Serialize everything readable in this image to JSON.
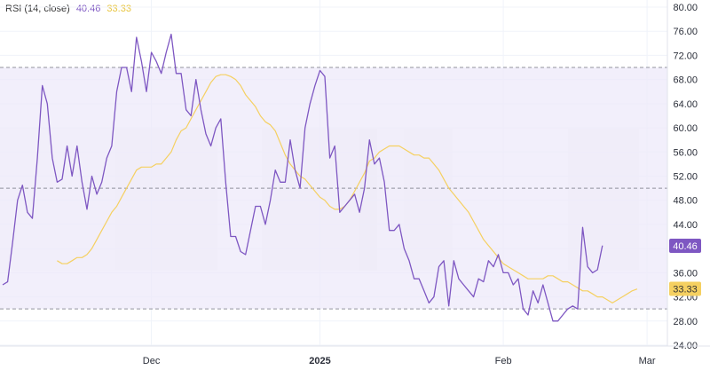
{
  "legend": {
    "label": "RSI (14, close)",
    "rsi_value": "40.46",
    "ma_value": "33.33"
  },
  "colors": {
    "rsi_line": "#7e57c2",
    "ma_line": "#f5d061",
    "band_fill": "#ede9fa",
    "badge_rsi": "#7e57c2",
    "badge_ma": "#f5d061"
  },
  "chart_data": {
    "type": "line",
    "title": "",
    "ylim": [
      24,
      80
    ],
    "yticks": [
      "80.00",
      "76.00",
      "72.00",
      "68.00",
      "64.00",
      "60.00",
      "56.00",
      "52.00",
      "48.00",
      "44.00",
      "40.00",
      "36.00",
      "32.00",
      "28.00",
      "24.00"
    ],
    "xticks": [
      {
        "label": "Dec",
        "index": 30,
        "bold": false
      },
      {
        "label": "2025",
        "index": 64,
        "bold": true
      },
      {
        "label": "Feb",
        "index": 101,
        "bold": false
      },
      {
        "label": "Mar",
        "index": 130,
        "bold": false
      }
    ],
    "levels": {
      "upper": 70,
      "middle": 50,
      "lower": 30
    },
    "series": [
      {
        "values": [
          34,
          34.5,
          41,
          48,
          50.5,
          46,
          45,
          55,
          67,
          64,
          55,
          51,
          51.5,
          57,
          52,
          57,
          51,
          46.5,
          52,
          49,
          51,
          55,
          57,
          66,
          70,
          70,
          66,
          75,
          71,
          66,
          72.5,
          71,
          69,
          72.5,
          75.5,
          69,
          69,
          63,
          62,
          68,
          63,
          59,
          57,
          60,
          61.5,
          51,
          42,
          42,
          39.5,
          39,
          43,
          47,
          47,
          44,
          48,
          53,
          51,
          51,
          58,
          53,
          50,
          60,
          64,
          67,
          69.5,
          68.5,
          55,
          57,
          46,
          47,
          48,
          49,
          46,
          50,
          58,
          54,
          55,
          51,
          43,
          43,
          44,
          40,
          38,
          35,
          35,
          33,
          31,
          32,
          37,
          38,
          30.5,
          38,
          35,
          34,
          33,
          32,
          35,
          34.5,
          38,
          37,
          39,
          36,
          36,
          34,
          35,
          30,
          29,
          33,
          31,
          34,
          31,
          28,
          28,
          29,
          30,
          30.5,
          30,
          43.5,
          37,
          36,
          36.5,
          40.5
        ],
        "x_start": 0
      },
      {
        "values": [
          38,
          37.5,
          37.5,
          38,
          38.5,
          38.5,
          39,
          40,
          41.5,
          43,
          44.5,
          46,
          47,
          48.5,
          50,
          51.5,
          53,
          53.5,
          53.5,
          53.5,
          54,
          54,
          55,
          56,
          58,
          59.5,
          60,
          61.5,
          63,
          64.5,
          66,
          67.5,
          68.5,
          68.8,
          68.8,
          68.5,
          68,
          67,
          65.5,
          64.5,
          63.5,
          62,
          61,
          60.5,
          59.5,
          57.5,
          55.5,
          54,
          53,
          52,
          51.5,
          50.5,
          49.5,
          48.5,
          48,
          47,
          46.5,
          46.5,
          47,
          48,
          49.5,
          51,
          52.5,
          54.5,
          55,
          56,
          56.5,
          57,
          57,
          57,
          56.5,
          56,
          55.5,
          55.5,
          55,
          55,
          54,
          53,
          51.5,
          50,
          49,
          48,
          47,
          46,
          44.5,
          43,
          41.5,
          40.5,
          39.5,
          38.5,
          37.5,
          37,
          36.5,
          36,
          35.5,
          35,
          35,
          35,
          35,
          35.5,
          35.5,
          35,
          34.5,
          34.5,
          34,
          33.5,
          33,
          33,
          32.5,
          32,
          32,
          31.5,
          31,
          31.5,
          32,
          32.5,
          33,
          33.3
        ],
        "x_start": 11
      }
    ]
  }
}
